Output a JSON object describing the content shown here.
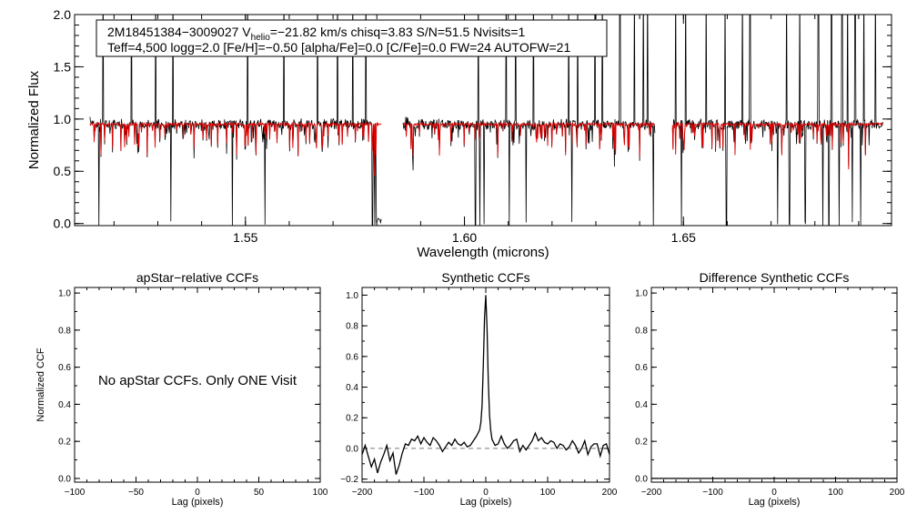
{
  "chart_data": [
    {
      "type": "line",
      "title": "",
      "xlabel": "Wavelength (microns)",
      "ylabel": "Normalized Flux",
      "xlim": [
        1.511,
        1.6975
      ],
      "ylim": [
        -0.02,
        2.0
      ],
      "xticks": [
        1.55,
        1.6,
        1.65
      ],
      "xtick_labels": [
        "1.55",
        "1.60",
        "1.65"
      ],
      "yticks": [
        0.0,
        0.5,
        1.0,
        1.5,
        2.0
      ],
      "ytick_labels": [
        "0.0",
        "0.5",
        "1.0",
        "1.5",
        "2.0"
      ],
      "annotation_line1_a": "2M18451384−3009027  V",
      "annotation_line1_sub": "helio",
      "annotation_line1_b": "=−21.82 km/s  chisq=3.83  S/N=51.5  Nvisits=1",
      "annotation_line2": "Teff=4,500 logg=2.0 [Fe/H]=−0.50 [alpha/Fe]=0.0 [C/Fe]=0.0 FW=24 AUTOFW=21",
      "chip_ranges": [
        [
          1.5145,
          1.581
        ],
        [
          1.586,
          1.6435
        ],
        [
          1.6475,
          1.6955
        ]
      ],
      "series": [
        {
          "name": "observed",
          "color": "#000000",
          "continuum": 0.95,
          "noise": 0.03
        },
        {
          "name": "model",
          "color": "#dd0000",
          "continuum": 0.95,
          "noise": 0.012
        }
      ],
      "deep_absorptions": [
        1.5165,
        1.533,
        1.547,
        1.5545,
        1.579,
        1.5795,
        1.6025,
        1.6035,
        1.6045,
        1.6102,
        1.6141,
        1.6245,
        1.6431,
        1.6495,
        1.6598,
        1.6715,
        1.6742,
        1.6778,
        1.6818,
        1.6832,
        1.6855,
        1.6875,
        1.6885,
        1.6905
      ],
      "spikes": [
        1.5175,
        1.524,
        1.5295,
        1.5335,
        1.5505,
        1.5588,
        1.5665,
        1.571,
        1.5745,
        1.5775,
        1.5802,
        1.6032,
        1.6095,
        1.6117,
        1.6158,
        1.6238,
        1.6258,
        1.6298,
        1.6315,
        1.6355,
        1.6388,
        1.6408,
        1.6418,
        1.6482,
        1.6505,
        1.6552,
        1.6595,
        1.6635,
        1.6652,
        1.6735,
        1.6765,
        1.6808,
        1.6838,
        1.6862,
        1.6875,
        1.6892,
        1.6912,
        1.6938
      ]
    },
    {
      "type": "line",
      "title": "apStar−relative CCFs",
      "xlabel": "Lag (pixels)",
      "ylabel": "Normalized CCF",
      "xlim": [
        -100,
        100
      ],
      "ylim": [
        -0.02,
        1.03
      ],
      "xticks": [
        -100,
        -50,
        0,
        50,
        100
      ],
      "xtick_labels": [
        "−100",
        "−50",
        "0",
        "50",
        "100"
      ],
      "yticks": [
        0.0,
        0.2,
        0.4,
        0.6,
        0.8,
        1.0
      ],
      "ytick_labels": [
        "0.0",
        "0.2",
        "0.4",
        "0.6",
        "0.8",
        "1.0"
      ],
      "message": "No apStar CCFs.  Only ONE Visit",
      "series": []
    },
    {
      "type": "line",
      "title": "Synthetic CCFs",
      "xlabel": "Lag (pixels)",
      "ylabel": "",
      "xlim": [
        -200,
        200
      ],
      "ylim": [
        -0.22,
        1.05
      ],
      "xticks": [
        -200,
        -100,
        0,
        100,
        200
      ],
      "xtick_labels": [
        "−200",
        "−100",
        "0",
        "100",
        "200"
      ],
      "yticks": [
        -0.2,
        0.0,
        0.2,
        0.4,
        0.6,
        0.8,
        1.0
      ],
      "ytick_labels": [
        "−0.2",
        "0.0",
        "0.2",
        "0.4",
        "0.6",
        "0.8",
        "1.0"
      ],
      "zero_line": 0.0,
      "series": [
        {
          "name": "ccf",
          "x": [
            -200,
            -195,
            -190,
            -185,
            -180,
            -175,
            -170,
            -165,
            -160,
            -155,
            -150,
            -145,
            -140,
            -135,
            -130,
            -125,
            -120,
            -115,
            -110,
            -105,
            -100,
            -95,
            -90,
            -85,
            -80,
            -75,
            -70,
            -65,
            -60,
            -55,
            -50,
            -45,
            -40,
            -35,
            -30,
            -25,
            -20,
            -15,
            -10,
            -8,
            -6,
            -4,
            -2,
            0,
            2,
            4,
            6,
            8,
            10,
            15,
            20,
            25,
            30,
            35,
            40,
            45,
            50,
            55,
            60,
            65,
            70,
            75,
            80,
            85,
            90,
            95,
            100,
            105,
            110,
            115,
            120,
            125,
            130,
            135,
            140,
            145,
            150,
            155,
            160,
            165,
            170,
            175,
            180,
            185,
            190,
            195,
            200
          ],
          "y": [
            -0.04,
            0.02,
            -0.05,
            -0.12,
            -0.07,
            -0.16,
            -0.09,
            -0.04,
            0.02,
            -0.08,
            -0.03,
            -0.17,
            -0.11,
            -0.03,
            0.03,
            0.02,
            0.06,
            0.05,
            0.08,
            0.03,
            0.07,
            0.04,
            0.02,
            0.07,
            0.05,
            0.02,
            -0.02,
            0.01,
            0.04,
            0.02,
            0.06,
            0.03,
            0.02,
            0.04,
            0.01,
            0.02,
            0.05,
            0.08,
            0.12,
            0.17,
            0.28,
            0.55,
            0.85,
            1.0,
            0.78,
            0.45,
            0.22,
            0.12,
            0.06,
            0.02,
            0.03,
            0.08,
            0.03,
            0.0,
            0.02,
            0.05,
            0.06,
            -0.02,
            0.02,
            -0.01,
            0.02,
            0.05,
            0.1,
            0.05,
            0.07,
            0.04,
            0.03,
            0.05,
            0.04,
            0.0,
            0.03,
            0.02,
            -0.01,
            0.01,
            0.05,
            0.02,
            -0.03,
            0.0,
            0.05,
            -0.04,
            0.01,
            0.03,
            0.03,
            -0.05,
            0.02,
            0.03,
            -0.04
          ]
        }
      ]
    },
    {
      "type": "line",
      "title": "Difference Synthetic CCFs",
      "xlabel": "Lag (pixels)",
      "ylabel": "",
      "xlim": [
        -200,
        200
      ],
      "ylim": [
        -0.02,
        1.03
      ],
      "xticks": [
        -200,
        -100,
        0,
        100,
        200
      ],
      "xtick_labels": [
        "−200",
        "−100",
        "0",
        "100",
        "200"
      ],
      "yticks": [
        0.0,
        0.2,
        0.4,
        0.6,
        0.8,
        1.0
      ],
      "ytick_labels": [
        "0.0",
        "0.2",
        "0.4",
        "0.6",
        "0.8",
        "1.0"
      ],
      "series": [
        {
          "name": "difference",
          "x": [
            -200,
            200
          ],
          "y": [
            0.0,
            0.0
          ]
        }
      ]
    }
  ]
}
